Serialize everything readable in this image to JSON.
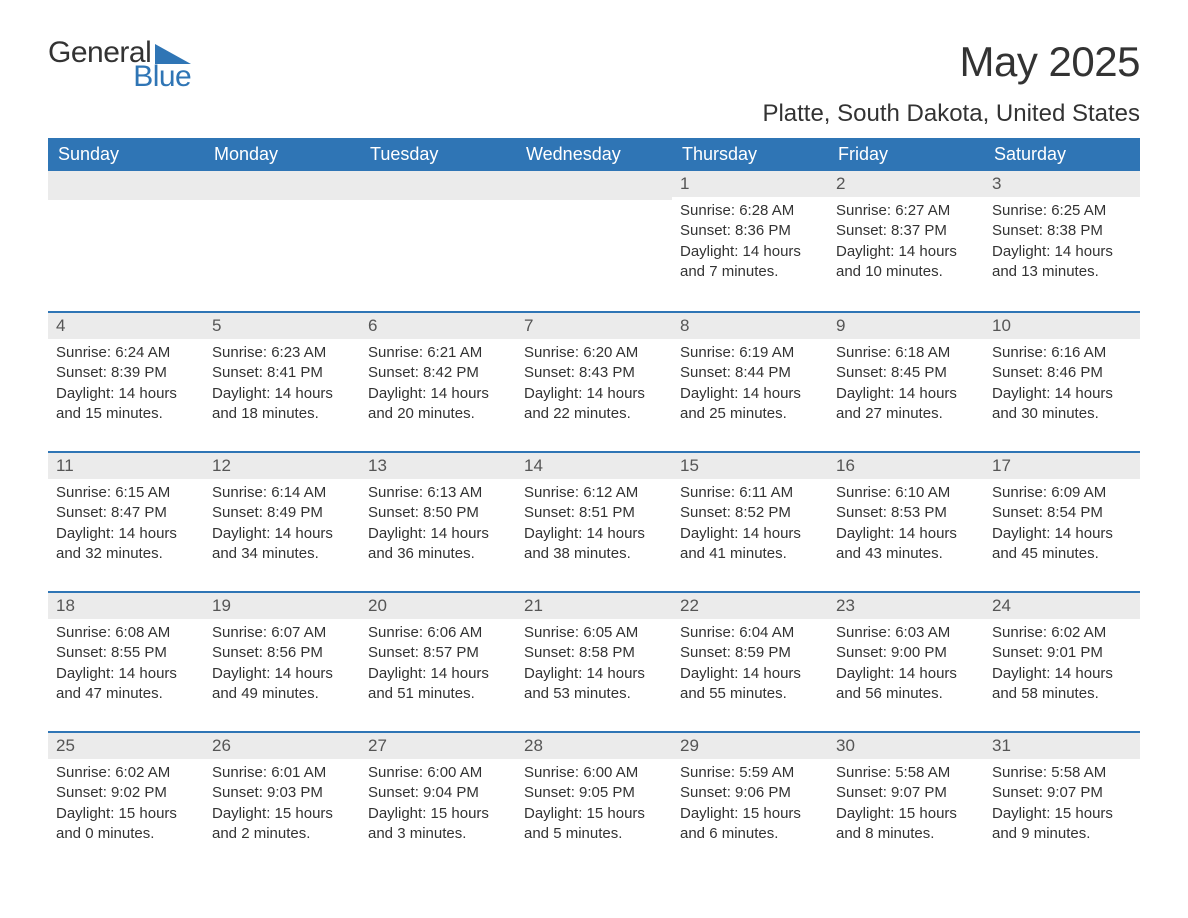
{
  "brand": {
    "word1": "General",
    "word2": "Blue"
  },
  "title": "May 2025",
  "location": "Platte, South Dakota, United States",
  "colors": {
    "accent": "#2f75b5",
    "header_bg": "#2f75b5",
    "daynum_bg": "#ebebeb",
    "text": "#333333",
    "page_bg": "#ffffff"
  },
  "weekdays": [
    "Sunday",
    "Monday",
    "Tuesday",
    "Wednesday",
    "Thursday",
    "Friday",
    "Saturday"
  ],
  "labels": {
    "sunrise": "Sunrise:",
    "sunset": "Sunset:",
    "daylight": "Daylight:"
  },
  "weeks": [
    [
      null,
      null,
      null,
      null,
      {
        "n": "1",
        "sunrise": "6:28 AM",
        "sunset": "8:36 PM",
        "daylight": "14 hours and 7 minutes."
      },
      {
        "n": "2",
        "sunrise": "6:27 AM",
        "sunset": "8:37 PM",
        "daylight": "14 hours and 10 minutes."
      },
      {
        "n": "3",
        "sunrise": "6:25 AM",
        "sunset": "8:38 PM",
        "daylight": "14 hours and 13 minutes."
      }
    ],
    [
      {
        "n": "4",
        "sunrise": "6:24 AM",
        "sunset": "8:39 PM",
        "daylight": "14 hours and 15 minutes."
      },
      {
        "n": "5",
        "sunrise": "6:23 AM",
        "sunset": "8:41 PM",
        "daylight": "14 hours and 18 minutes."
      },
      {
        "n": "6",
        "sunrise": "6:21 AM",
        "sunset": "8:42 PM",
        "daylight": "14 hours and 20 minutes."
      },
      {
        "n": "7",
        "sunrise": "6:20 AM",
        "sunset": "8:43 PM",
        "daylight": "14 hours and 22 minutes."
      },
      {
        "n": "8",
        "sunrise": "6:19 AM",
        "sunset": "8:44 PM",
        "daylight": "14 hours and 25 minutes."
      },
      {
        "n": "9",
        "sunrise": "6:18 AM",
        "sunset": "8:45 PM",
        "daylight": "14 hours and 27 minutes."
      },
      {
        "n": "10",
        "sunrise": "6:16 AM",
        "sunset": "8:46 PM",
        "daylight": "14 hours and 30 minutes."
      }
    ],
    [
      {
        "n": "11",
        "sunrise": "6:15 AM",
        "sunset": "8:47 PM",
        "daylight": "14 hours and 32 minutes."
      },
      {
        "n": "12",
        "sunrise": "6:14 AM",
        "sunset": "8:49 PM",
        "daylight": "14 hours and 34 minutes."
      },
      {
        "n": "13",
        "sunrise": "6:13 AM",
        "sunset": "8:50 PM",
        "daylight": "14 hours and 36 minutes."
      },
      {
        "n": "14",
        "sunrise": "6:12 AM",
        "sunset": "8:51 PM",
        "daylight": "14 hours and 38 minutes."
      },
      {
        "n": "15",
        "sunrise": "6:11 AM",
        "sunset": "8:52 PM",
        "daylight": "14 hours and 41 minutes."
      },
      {
        "n": "16",
        "sunrise": "6:10 AM",
        "sunset": "8:53 PM",
        "daylight": "14 hours and 43 minutes."
      },
      {
        "n": "17",
        "sunrise": "6:09 AM",
        "sunset": "8:54 PM",
        "daylight": "14 hours and 45 minutes."
      }
    ],
    [
      {
        "n": "18",
        "sunrise": "6:08 AM",
        "sunset": "8:55 PM",
        "daylight": "14 hours and 47 minutes."
      },
      {
        "n": "19",
        "sunrise": "6:07 AM",
        "sunset": "8:56 PM",
        "daylight": "14 hours and 49 minutes."
      },
      {
        "n": "20",
        "sunrise": "6:06 AM",
        "sunset": "8:57 PM",
        "daylight": "14 hours and 51 minutes."
      },
      {
        "n": "21",
        "sunrise": "6:05 AM",
        "sunset": "8:58 PM",
        "daylight": "14 hours and 53 minutes."
      },
      {
        "n": "22",
        "sunrise": "6:04 AM",
        "sunset": "8:59 PM",
        "daylight": "14 hours and 55 minutes."
      },
      {
        "n": "23",
        "sunrise": "6:03 AM",
        "sunset": "9:00 PM",
        "daylight": "14 hours and 56 minutes."
      },
      {
        "n": "24",
        "sunrise": "6:02 AM",
        "sunset": "9:01 PM",
        "daylight": "14 hours and 58 minutes."
      }
    ],
    [
      {
        "n": "25",
        "sunrise": "6:02 AM",
        "sunset": "9:02 PM",
        "daylight": "15 hours and 0 minutes."
      },
      {
        "n": "26",
        "sunrise": "6:01 AM",
        "sunset": "9:03 PM",
        "daylight": "15 hours and 2 minutes."
      },
      {
        "n": "27",
        "sunrise": "6:00 AM",
        "sunset": "9:04 PM",
        "daylight": "15 hours and 3 minutes."
      },
      {
        "n": "28",
        "sunrise": "6:00 AM",
        "sunset": "9:05 PM",
        "daylight": "15 hours and 5 minutes."
      },
      {
        "n": "29",
        "sunrise": "5:59 AM",
        "sunset": "9:06 PM",
        "daylight": "15 hours and 6 minutes."
      },
      {
        "n": "30",
        "sunrise": "5:58 AM",
        "sunset": "9:07 PM",
        "daylight": "15 hours and 8 minutes."
      },
      {
        "n": "31",
        "sunrise": "5:58 AM",
        "sunset": "9:07 PM",
        "daylight": "15 hours and 9 minutes."
      }
    ]
  ]
}
